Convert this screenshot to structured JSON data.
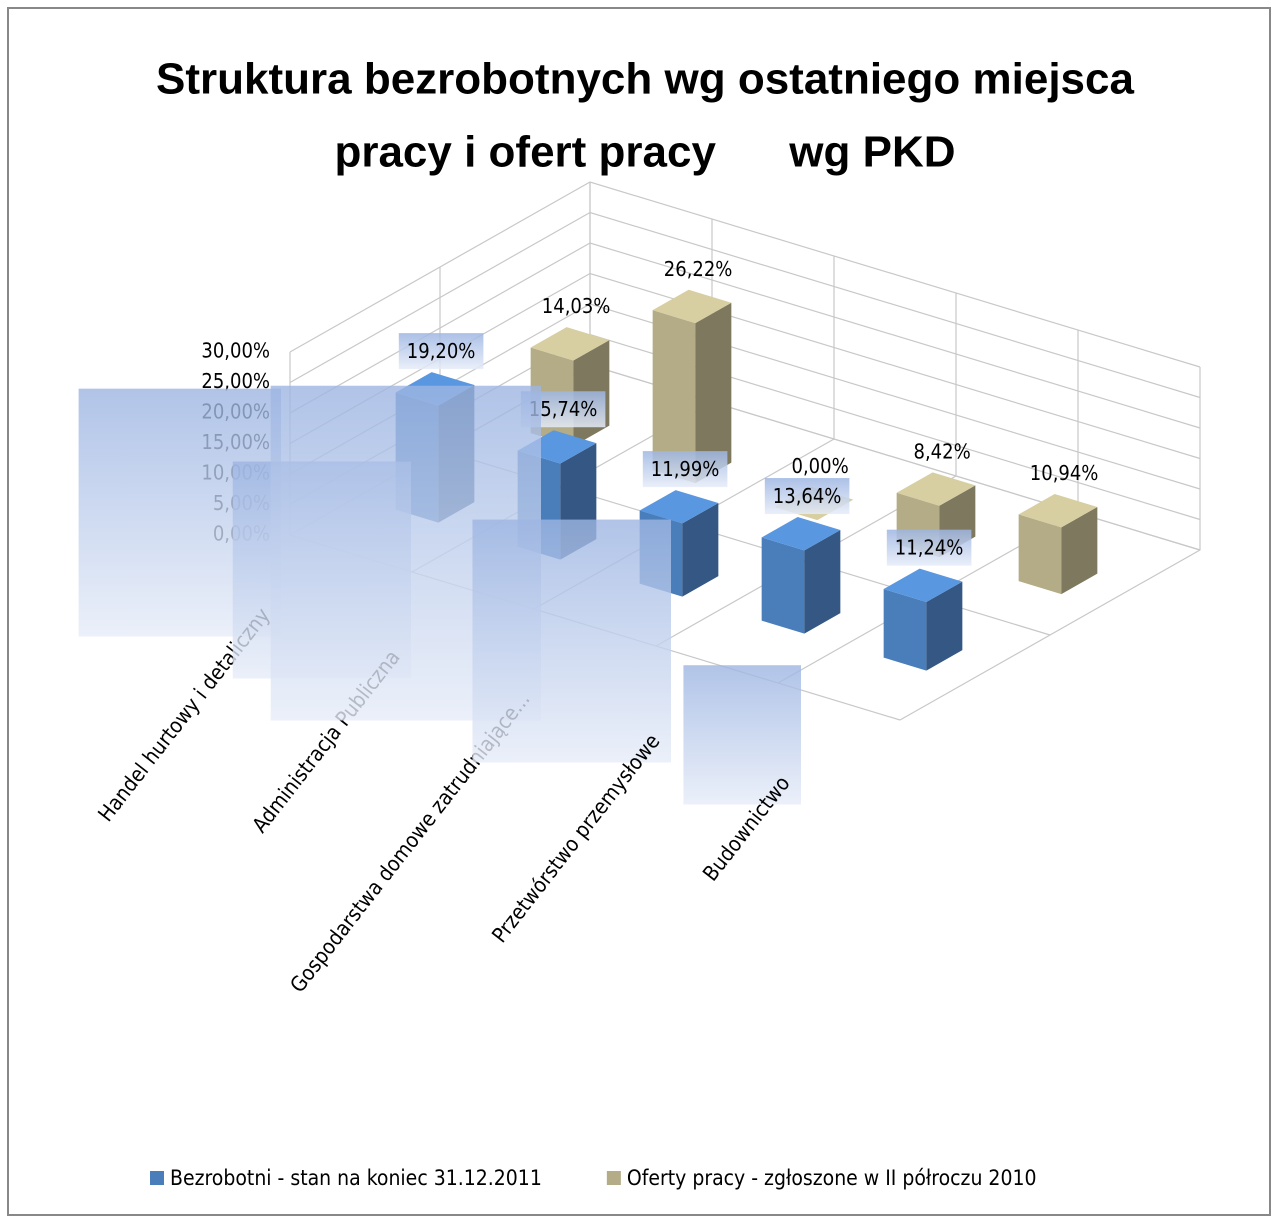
{
  "chart_data": {
    "type": "bar3d",
    "title": [
      "Struktura bezrobotnych wg ostatniego miejsca",
      "pracy i ofert pracy      wg PKD"
    ],
    "categories": [
      "Handel hurtowy i detaliczny",
      "Administracja Publiczna",
      "Gospodarstwa domowe zatrudniające...",
      "Przetwórstwo przemysłowe",
      "Budownictwo"
    ],
    "series": [
      {
        "name": "Bezrobotni - stan na koniec 31.12.2011",
        "color": "#4a7ebb",
        "values": [
          19.2,
          15.74,
          11.99,
          13.64,
          11.24
        ],
        "value_labels": [
          "19,20%",
          "15,74%",
          "11,99%",
          "13,64%",
          "11,24%"
        ]
      },
      {
        "name": "Oferty pracy - zgłoszone w II półroczu 2010",
        "color": "#b3ac86",
        "values": [
          14.03,
          26.22,
          0.0,
          8.42,
          10.94
        ],
        "value_labels": [
          "14,03%",
          "26,22%",
          "0,00%",
          "8,42%",
          "10,94%"
        ]
      }
    ],
    "ylim": [
      0,
      30
    ],
    "yticks": [
      {
        "value": 0,
        "label": "0,00%"
      },
      {
        "value": 5,
        "label": "5,00%"
      },
      {
        "value": 10,
        "label": "10,00%"
      },
      {
        "value": 15,
        "label": "15,00%"
      },
      {
        "value": 20,
        "label": "20,00%"
      },
      {
        "value": 25,
        "label": "25,00%"
      },
      {
        "value": 30,
        "label": "30,00%"
      }
    ],
    "grid": true,
    "legend": "bottom"
  }
}
